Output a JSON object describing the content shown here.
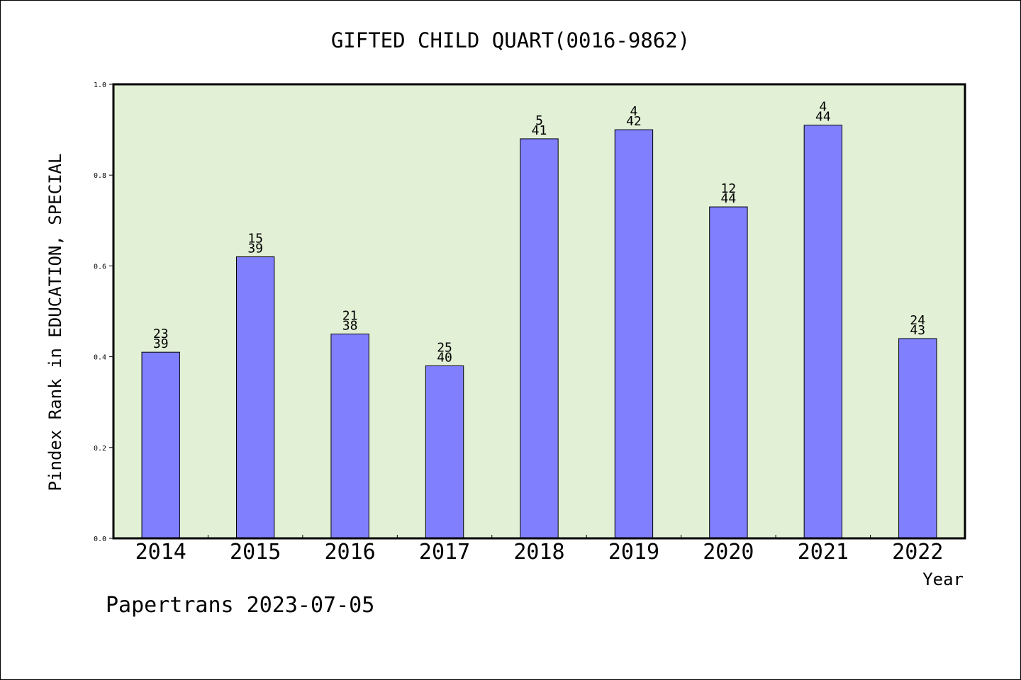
{
  "chart_data": {
    "type": "bar",
    "title": "GIFTED CHILD QUART(0016-9862)",
    "xlabel": "Year",
    "ylabel": "Pindex Rank in EDUCATION, SPECIAL",
    "ylim": [
      0,
      1.0
    ],
    "yticks": [
      "0.0",
      "0.2",
      "0.4",
      "0.6",
      "0.8",
      "1.0"
    ],
    "categories": [
      "2014",
      "2015",
      "2016",
      "2017",
      "2018",
      "2019",
      "2020",
      "2021",
      "2022"
    ],
    "values": [
      0.41,
      0.62,
      0.45,
      0.38,
      0.88,
      0.9,
      0.73,
      0.91,
      0.44
    ],
    "rank_labels": [
      "23",
      "15",
      "21",
      "25",
      "5",
      "4",
      "12",
      "4",
      "24"
    ],
    "total_labels": [
      "39",
      "39",
      "38",
      "40",
      "41",
      "42",
      "44",
      "44",
      "43"
    ],
    "bar_color": "#8080ff",
    "plot_background": "#e2f0d6",
    "grid": false
  },
  "footer": {
    "credit": "Papertrans 2023-07-05"
  }
}
